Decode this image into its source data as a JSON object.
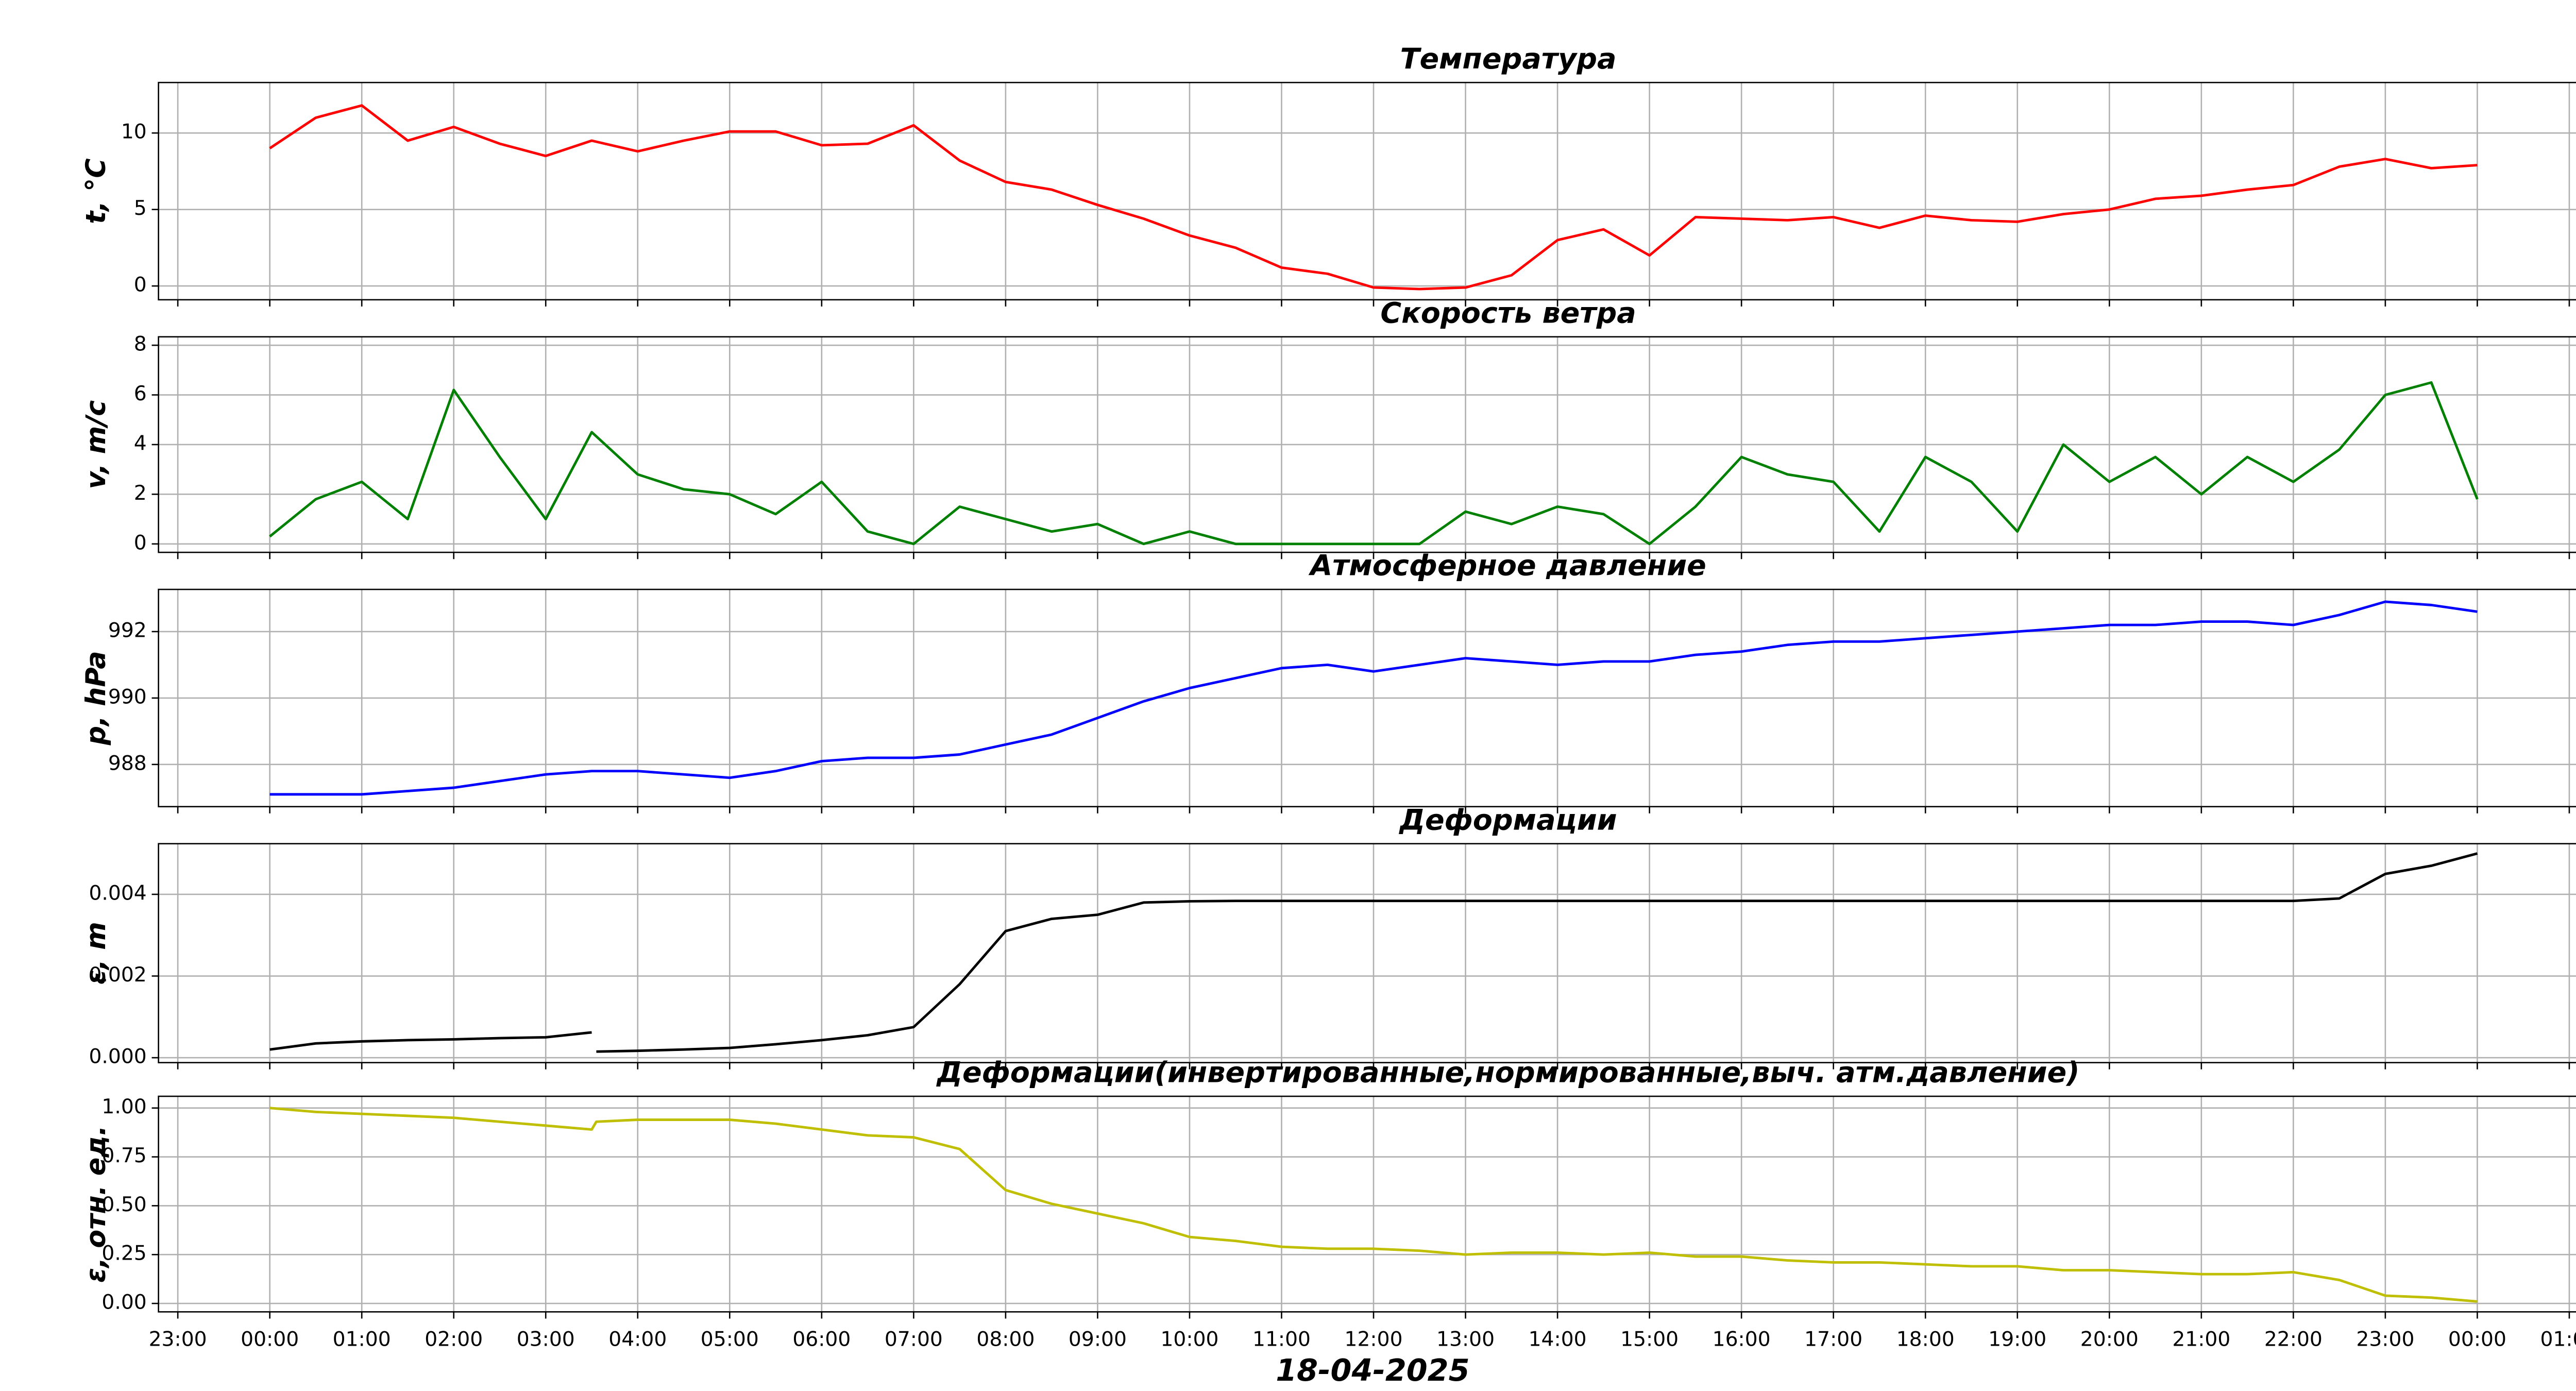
{
  "chart_data": [
    {
      "type": "line",
      "title": "Температура",
      "ylabel": "t, °C",
      "x": [
        0,
        0.5,
        1,
        1.5,
        2,
        2.5,
        3,
        3.5,
        4,
        4.5,
        5,
        5.5,
        6,
        6.5,
        7,
        7.5,
        8,
        8.5,
        9,
        9.5,
        10,
        10.5,
        11,
        11.5,
        12,
        12.5,
        13,
        13.5,
        14,
        14.5,
        15,
        15.5,
        16,
        16.5,
        17,
        17.5,
        18,
        18.5,
        19,
        19.5,
        20,
        20.5,
        21,
        21.5,
        22,
        22.5,
        23,
        23.5,
        24
      ],
      "series": [
        {
          "color": "#ff0000",
          "values": [
            9.0,
            11.0,
            11.8,
            9.5,
            10.4,
            9.3,
            8.5,
            9.5,
            8.8,
            9.5,
            10.1,
            10.1,
            9.2,
            9.3,
            10.5,
            8.2,
            6.8,
            6.3,
            5.3,
            4.4,
            3.3,
            2.5,
            1.2,
            0.8,
            -0.1,
            -0.2,
            -0.1,
            0.7,
            3.0,
            3.7,
            2.0,
            4.5,
            4.4,
            4.3,
            4.5,
            3.8,
            4.6,
            4.3,
            4.2,
            4.7,
            5.0,
            5.7,
            5.9,
            6.3,
            6.6,
            7.8,
            8.3,
            7.7,
            7.9
          ]
        }
      ],
      "xlim": [
        -1.21,
        25.21
      ],
      "xticks": [
        -1,
        0,
        1,
        2,
        3,
        4,
        5,
        6,
        7,
        8,
        9,
        10,
        11,
        12,
        13,
        14,
        15,
        16,
        17,
        18,
        19,
        20,
        21,
        22,
        23,
        24,
        25
      ],
      "ylim": [
        -0.9,
        13.3
      ],
      "yticks": [
        0,
        5,
        10
      ],
      "grid": true
    },
    {
      "type": "line",
      "title": "Скорость ветра",
      "ylabel": "v, m/c",
      "x": [
        0,
        0.5,
        1,
        1.5,
        2,
        2.5,
        3,
        3.5,
        4,
        4.5,
        5,
        5.5,
        6,
        6.5,
        7,
        7.5,
        8,
        8.5,
        9,
        9.5,
        10,
        10.5,
        11,
        11.5,
        12,
        12.5,
        13,
        13.5,
        14,
        14.5,
        15,
        15.5,
        16,
        16.5,
        17,
        17.5,
        18,
        18.5,
        19,
        19.5,
        20,
        20.5,
        21,
        21.5,
        22,
        22.5,
        23,
        23.5,
        24
      ],
      "series": [
        {
          "color": "#008000",
          "values": [
            0.3,
            1.8,
            2.5,
            1.0,
            6.2,
            3.5,
            1.0,
            4.5,
            2.8,
            2.2,
            2.0,
            1.2,
            2.5,
            0.5,
            0.0,
            1.5,
            1.0,
            0.5,
            0.8,
            0.0,
            0.5,
            0,
            0,
            0,
            0,
            0,
            1.3,
            0.8,
            1.5,
            1.2,
            0.0,
            1.5,
            3.5,
            2.8,
            2.5,
            0.5,
            3.5,
            2.5,
            0.5,
            4.0,
            2.5,
            3.5,
            2.0,
            3.5,
            2.5,
            3.8,
            6.0,
            6.5,
            1.8
          ]
        }
      ],
      "xlim": [
        -1.21,
        25.21
      ],
      "xticks": [
        -1,
        0,
        1,
        2,
        3,
        4,
        5,
        6,
        7,
        8,
        9,
        10,
        11,
        12,
        13,
        14,
        15,
        16,
        17,
        18,
        19,
        20,
        21,
        22,
        23,
        24,
        25
      ],
      "ylim": [
        -0.34,
        8.34
      ],
      "yticks": [
        0,
        2,
        4,
        6,
        8
      ],
      "grid": true
    },
    {
      "type": "line",
      "title": "Атмосферное давление",
      "ylabel": "p, hPa",
      "x": [
        0,
        0.5,
        1,
        1.5,
        2,
        2.5,
        3,
        3.5,
        4,
        4.5,
        5,
        5.5,
        6,
        6.5,
        7,
        7.5,
        8,
        8.5,
        9,
        9.5,
        10,
        10.5,
        11,
        11.5,
        12,
        12.5,
        13,
        13.5,
        14,
        14.5,
        15,
        15.5,
        16,
        16.5,
        17,
        17.5,
        18,
        18.5,
        19,
        19.5,
        20,
        20.5,
        21,
        21.5,
        22,
        22.5,
        23,
        23.5,
        24
      ],
      "series": [
        {
          "color": "#0000ff",
          "values": [
            987.1,
            987.1,
            987.1,
            987.2,
            987.3,
            987.5,
            987.7,
            987.8,
            987.8,
            987.7,
            987.6,
            987.8,
            988.1,
            988.2,
            988.2,
            988.3,
            988.6,
            988.9,
            989.4,
            989.9,
            990.3,
            990.6,
            990.9,
            991.0,
            990.8,
            991.0,
            991.2,
            991.1,
            991.0,
            991.1,
            991.1,
            991.3,
            991.4,
            991.6,
            991.7,
            991.7,
            991.8,
            991.9,
            992.0,
            992.1,
            992.2,
            992.2,
            992.3,
            992.3,
            992.2,
            992.5,
            992.9,
            992.8,
            992.6
          ]
        }
      ],
      "xlim": [
        -1.21,
        25.21
      ],
      "xticks": [
        -1,
        0,
        1,
        2,
        3,
        4,
        5,
        6,
        7,
        8,
        9,
        10,
        11,
        12,
        13,
        14,
        15,
        16,
        17,
        18,
        19,
        20,
        21,
        22,
        23,
        24,
        25
      ],
      "ylim": [
        986.73,
        993.27
      ],
      "yticks": [
        988,
        990,
        992
      ],
      "grid": true
    },
    {
      "type": "line",
      "title": "Деформации",
      "ylabel": "ε, m",
      "x": [
        0,
        0.5,
        1,
        1.5,
        2,
        2.5,
        3,
        3.5,
        3.52,
        3.55,
        4,
        4.5,
        5,
        5.5,
        6,
        6.5,
        7,
        7.5,
        8,
        8.5,
        9,
        9.5,
        10,
        10.5,
        11,
        11.5,
        12,
        12.5,
        13,
        13.5,
        14,
        14.5,
        15,
        15.5,
        16,
        16.5,
        17,
        17.5,
        18,
        18.5,
        19,
        19.5,
        20,
        20.5,
        21,
        21.5,
        22,
        22.5,
        23,
        23.5,
        24
      ],
      "series": [
        {
          "color": "#000000",
          "values": [
            0.0002,
            0.00035,
            0.0004,
            0.00043,
            0.00045,
            0.00048,
            0.0005,
            0.00062,
            null,
            0.00015,
            0.00017,
            0.0002,
            0.00024,
            0.00033,
            0.00043,
            0.00055,
            0.00075,
            0.0018,
            0.0031,
            0.0034,
            0.0035,
            0.0038,
            0.00383,
            0.00384,
            0.00384,
            0.00384,
            0.00384,
            0.00384,
            0.00384,
            0.00384,
            0.00384,
            0.00384,
            0.00384,
            0.00384,
            0.00384,
            0.00384,
            0.00384,
            0.00384,
            0.00384,
            0.00384,
            0.00384,
            0.00384,
            0.00384,
            0.00384,
            0.00384,
            0.00384,
            0.00384,
            0.0039,
            0.0045,
            0.0047,
            0.005
          ]
        }
      ],
      "xlim": [
        -1.21,
        25.21
      ],
      "xticks": [
        -1,
        0,
        1,
        2,
        3,
        4,
        5,
        6,
        7,
        8,
        9,
        10,
        11,
        12,
        13,
        14,
        15,
        16,
        17,
        18,
        19,
        20,
        21,
        22,
        23,
        24,
        25
      ],
      "ylim": [
        -0.00012,
        0.00524
      ],
      "yticks": [
        {
          "value": 0,
          "label": "0.000"
        },
        {
          "value": 0.002,
          "label": "0.002"
        },
        {
          "value": 0.004,
          "label": "0.004"
        }
      ],
      "grid": true
    },
    {
      "type": "line",
      "title": "Деформации(инвертированные,нормированные,выч. атм.давление)",
      "ylabel": "ε, отн. ед.",
      "xlabel": "18-04-2025",
      "x": [
        0,
        0.5,
        1,
        1.5,
        2,
        2.5,
        3,
        3.5,
        3.55,
        4,
        4.5,
        5,
        5.5,
        6,
        6.5,
        7,
        7.5,
        8,
        8.5,
        9,
        9.5,
        10,
        10.5,
        11,
        11.5,
        12,
        12.5,
        13,
        13.5,
        14,
        14.5,
        15,
        15.5,
        16,
        16.5,
        17,
        17.5,
        18,
        18.5,
        19,
        19.5,
        20,
        20.5,
        21,
        21.5,
        22,
        22.5,
        23,
        23.5,
        24
      ],
      "series": [
        {
          "color": "#bfbf00",
          "values": [
            1.0,
            0.98,
            0.97,
            0.96,
            0.95,
            0.93,
            0.91,
            0.89,
            0.93,
            0.94,
            0.94,
            0.94,
            0.92,
            0.89,
            0.86,
            0.85,
            0.79,
            0.58,
            0.51,
            0.46,
            0.41,
            0.34,
            0.32,
            0.29,
            0.28,
            0.28,
            0.27,
            0.25,
            0.26,
            0.26,
            0.25,
            0.26,
            0.24,
            0.24,
            0.22,
            0.21,
            0.21,
            0.2,
            0.19,
            0.19,
            0.17,
            0.17,
            0.16,
            0.15,
            0.15,
            0.16,
            0.12,
            0.04,
            0.03,
            0.01
          ]
        }
      ],
      "xlim": [
        -1.21,
        25.21
      ],
      "xticks": [
        {
          "value": -1,
          "label": "23:00"
        },
        {
          "value": 0,
          "label": "00:00"
        },
        {
          "value": 1,
          "label": "01:00"
        },
        {
          "value": 2,
          "label": "02:00"
        },
        {
          "value": 3,
          "label": "03:00"
        },
        {
          "value": 4,
          "label": "04:00"
        },
        {
          "value": 5,
          "label": "05:00"
        },
        {
          "value": 6,
          "label": "06:00"
        },
        {
          "value": 7,
          "label": "07:00"
        },
        {
          "value": 8,
          "label": "08:00"
        },
        {
          "value": 9,
          "label": "09:00"
        },
        {
          "value": 10,
          "label": "10:00"
        },
        {
          "value": 11,
          "label": "11:00"
        },
        {
          "value": 12,
          "label": "12:00"
        },
        {
          "value": 13,
          "label": "13:00"
        },
        {
          "value": 14,
          "label": "14:00"
        },
        {
          "value": 15,
          "label": "15:00"
        },
        {
          "value": 16,
          "label": "16:00"
        },
        {
          "value": 17,
          "label": "17:00"
        },
        {
          "value": 18,
          "label": "18:00"
        },
        {
          "value": 19,
          "label": "19:00"
        },
        {
          "value": 20,
          "label": "20:00"
        },
        {
          "value": 21,
          "label": "21:00"
        },
        {
          "value": 22,
          "label": "22:00"
        },
        {
          "value": 23,
          "label": "23:00"
        },
        {
          "value": 24,
          "label": "00:00"
        },
        {
          "value": 25,
          "label": "01:00"
        }
      ],
      "ylim": [
        -0.043,
        1.06
      ],
      "yticks": [
        {
          "value": 0,
          "label": "0.00"
        },
        {
          "value": 0.25,
          "label": "0.25"
        },
        {
          "value": 0.5,
          "label": "0.50"
        },
        {
          "value": 0.75,
          "label": "0.75"
        },
        {
          "value": 1,
          "label": "1.00"
        }
      ],
      "grid": true
    }
  ]
}
